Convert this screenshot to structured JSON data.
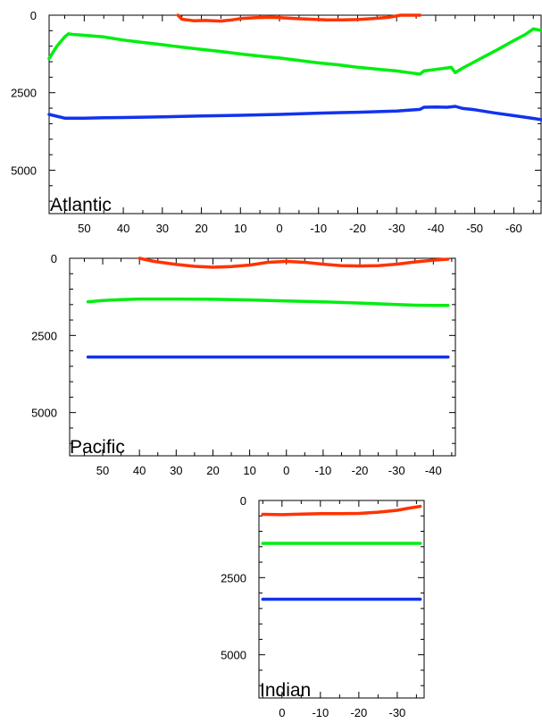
{
  "chart_data": [
    {
      "type": "line",
      "basin_label": "Atlantic",
      "xlim": [
        59,
        -67
      ],
      "ylim": [
        0,
        6400
      ],
      "y_reversed": true,
      "x_ticks": [
        50,
        40,
        30,
        20,
        10,
        0,
        -10,
        -20,
        -30,
        -40,
        -50,
        -60
      ],
      "x_tick_labels": [
        "50",
        "40",
        "30",
        "20",
        "10",
        "0",
        "-10",
        "-20",
        "-30",
        "-40",
        "-50",
        "-60"
      ],
      "y_ticks": [
        0,
        2500,
        5000
      ],
      "y_tick_labels": [
        "0",
        "2500",
        "5000"
      ],
      "grid": false,
      "series": [
        {
          "color": "#ff3300",
          "x": [
            26,
            25,
            22,
            19,
            15,
            12,
            10,
            6,
            2,
            0,
            -4,
            -8,
            -12,
            -16,
            -20,
            -24,
            -28,
            -31,
            -34,
            -36
          ],
          "y": [
            0,
            130,
            180,
            170,
            190,
            150,
            110,
            80,
            70,
            80,
            110,
            130,
            150,
            150,
            140,
            110,
            70,
            0,
            0,
            0
          ]
        },
        {
          "color": "#00ee11",
          "x": [
            59,
            57,
            55,
            54,
            53,
            50,
            45,
            40,
            35,
            30,
            27,
            25,
            20,
            15,
            10,
            5,
            0,
            -5,
            -10,
            -15,
            -20,
            -25,
            -30,
            -33,
            -36,
            -37,
            -40,
            -43,
            -44,
            -45,
            -47,
            -50,
            -53,
            -56,
            -60,
            -63,
            -65,
            -67
          ],
          "y": [
            1400,
            1000,
            700,
            600,
            620,
            650,
            700,
            800,
            880,
            950,
            1000,
            1030,
            1100,
            1170,
            1250,
            1320,
            1380,
            1460,
            1540,
            1600,
            1680,
            1740,
            1800,
            1850,
            1900,
            1800,
            1750,
            1700,
            1680,
            1850,
            1700,
            1500,
            1300,
            1100,
            820,
            620,
            440,
            490
          ]
        },
        {
          "color": "#1133ee",
          "x": [
            59,
            55,
            50,
            45,
            40,
            30,
            20,
            10,
            0,
            -10,
            -20,
            -30,
            -36,
            -37,
            -40,
            -43,
            -45,
            -47,
            -50,
            -55,
            -60,
            -65,
            -67
          ],
          "y": [
            3200,
            3320,
            3320,
            3310,
            3300,
            3280,
            3250,
            3230,
            3200,
            3160,
            3130,
            3090,
            3040,
            2970,
            2960,
            2970,
            2940,
            3010,
            3050,
            3150,
            3240,
            3330,
            3370
          ]
        }
      ]
    },
    {
      "type": "line",
      "basin_label": "Pacific",
      "xlim": [
        59,
        -46
      ],
      "ylim": [
        0,
        6400
      ],
      "y_reversed": true,
      "x_ticks": [
        50,
        40,
        30,
        20,
        10,
        0,
        -10,
        -20,
        -30,
        -40
      ],
      "x_tick_labels": [
        "50",
        "40",
        "30",
        "20",
        "10",
        "0",
        "-10",
        "-20",
        "-30",
        "-40"
      ],
      "y_ticks": [
        0,
        2500,
        5000
      ],
      "y_tick_labels": [
        "0",
        "2500",
        "5000"
      ],
      "grid": false,
      "series": [
        {
          "color": "#ff3300",
          "x": [
            40,
            36,
            30,
            25,
            20,
            15,
            10,
            5,
            0,
            -5,
            -10,
            -15,
            -20,
            -25,
            -30,
            -35,
            -40,
            -44
          ],
          "y": [
            0,
            100,
            200,
            260,
            290,
            270,
            220,
            130,
            100,
            130,
            190,
            240,
            250,
            240,
            190,
            120,
            60,
            30
          ]
        },
        {
          "color": "#00ee11",
          "x": [
            54,
            50,
            45,
            40,
            30,
            20,
            10,
            0,
            -10,
            -20,
            -30,
            -35,
            -40,
            -44
          ],
          "y": [
            1410,
            1370,
            1340,
            1320,
            1320,
            1330,
            1350,
            1380,
            1410,
            1450,
            1500,
            1520,
            1530,
            1530
          ]
        },
        {
          "color": "#1133ee",
          "x": [
            54,
            45,
            30,
            15,
            0,
            -15,
            -30,
            -44
          ],
          "y": [
            3200,
            3200,
            3200,
            3200,
            3200,
            3200,
            3200,
            3200
          ]
        }
      ]
    },
    {
      "type": "line",
      "basin_label": "Indian",
      "xlim": [
        6,
        -37
      ],
      "ylim": [
        0,
        6400
      ],
      "y_reversed": true,
      "x_ticks": [
        0,
        -10,
        -20,
        -30
      ],
      "x_tick_labels": [
        "0",
        "-10",
        "-20",
        "-30"
      ],
      "y_ticks": [
        0,
        2500,
        5000
      ],
      "y_tick_labels": [
        "0",
        "2500",
        "5000"
      ],
      "grid": false,
      "series": [
        {
          "color": "#ff3300",
          "x": [
            5,
            0,
            -5,
            -10,
            -15,
            -20,
            -25,
            -30,
            -33,
            -36
          ],
          "y": [
            450,
            460,
            440,
            430,
            430,
            420,
            380,
            320,
            250,
            190
          ]
        },
        {
          "color": "#00ee11",
          "x": [
            5,
            0,
            -10,
            -20,
            -30,
            -36
          ],
          "y": [
            1390,
            1390,
            1390,
            1390,
            1390,
            1390
          ]
        },
        {
          "color": "#1133ee",
          "x": [
            5,
            0,
            -10,
            -20,
            -30,
            -36
          ],
          "y": [
            3200,
            3200,
            3200,
            3200,
            3200,
            3200
          ]
        }
      ]
    }
  ]
}
